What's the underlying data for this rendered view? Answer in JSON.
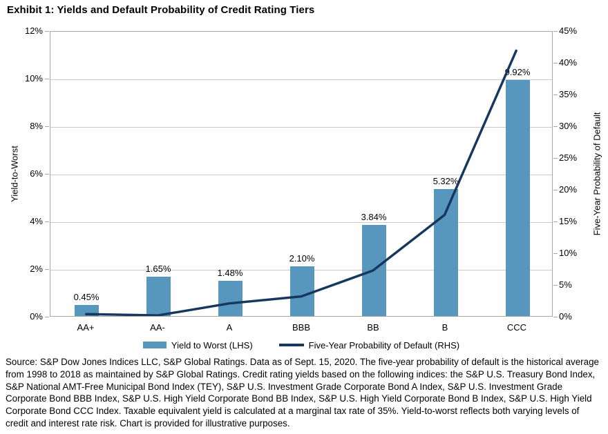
{
  "title": "Exhibit 1: Yields and Default Probability of Credit Rating Tiers",
  "colors": {
    "bar": "#5797be",
    "line": "#17375e",
    "grid": "#c9c9c9",
    "axis": "#a6a6a6"
  },
  "chart_data": {
    "type": "bar+line",
    "categories": [
      "AA+",
      "AA-",
      "A",
      "BBB",
      "BB",
      "B",
      "CCC"
    ],
    "series": [
      {
        "name": "Yield to Worst (LHS)",
        "type": "bar",
        "axis": "left",
        "values": [
          0.45,
          1.65,
          1.48,
          2.1,
          3.84,
          5.32,
          9.92
        ],
        "labels": [
          "0.45%",
          "1.65%",
          "1.48%",
          "2.10%",
          "3.84%",
          "5.32%",
          "9.92%"
        ],
        "color": "#5797be"
      },
      {
        "name": "Five-Year Probability of Default (RHS)",
        "type": "line",
        "axis": "right",
        "values": [
          0.3,
          0.1,
          2.0,
          3.1,
          7.2,
          16.0,
          42.0
        ],
        "color": "#17375e"
      }
    ],
    "ylabel_left": "Yield-to-Worst",
    "ylabel_right": "Five-Year Probability of Default",
    "left_axis": {
      "min": 0,
      "max": 12,
      "step": 2,
      "tick_labels": [
        "0%",
        "2%",
        "4%",
        "6%",
        "8%",
        "10%",
        "12%"
      ]
    },
    "right_axis": {
      "min": 0,
      "max": 45,
      "step": 5,
      "tick_labels": [
        "0%",
        "5%",
        "10%",
        "15%",
        "20%",
        "25%",
        "30%",
        "35%",
        "40%",
        "45%"
      ]
    },
    "grid": "horizontal",
    "legend_position": "bottom",
    "legend": [
      "Yield to Worst (LHS)",
      "Five-Year Probability of Default (RHS)"
    ]
  },
  "source": "Source: S&P Dow Jones Indices LLC, S&P Global Ratings. Data as of Sept. 15, 2020. The five-year probability of default is the historical average from 1998 to 2018 as maintained by S&P Global Ratings. Credit rating yields based on the following indices: the S&P U.S. Treasury Bond Index, S&P National AMT-Free Municipal Bond Index (TEY), S&P U.S. Investment Grade Corporate Bond A Index, S&P U.S. Investment Grade Corporate Bond BBB Index, S&P U.S. High Yield Corporate Bond BB Index, S&P U.S. High Yield Corporate Bond B Index, S&P U.S. High Yield Corporate Bond CCC Index. Taxable equivalent yield is calculated at a marginal tax rate of 35%. Yield-to-worst reflects both varying levels of credit and interest rate risk. Chart is provided for illustrative purposes."
}
